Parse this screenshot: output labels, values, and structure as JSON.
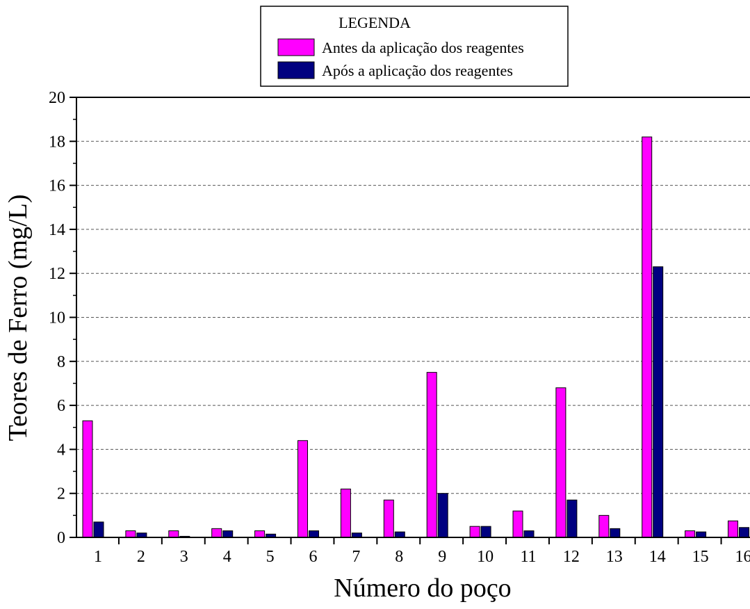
{
  "legend": {
    "title": "LEGENDA",
    "entries": [
      "Antes da aplicação dos reagentes",
      "Após a aplicação dos reagentes"
    ]
  },
  "colors": {
    "before": "#FF00FF",
    "after": "#000080",
    "grid": "#555555"
  },
  "chart_data": {
    "type": "bar",
    "xlabel": "Número do poço",
    "ylabel": "Teores de Ferro (mg/L)",
    "ylim": [
      0,
      20
    ],
    "yticks": [
      0,
      2,
      4,
      6,
      8,
      10,
      12,
      14,
      16,
      18,
      20
    ],
    "grid": true,
    "legend_position": "top-center",
    "categories": [
      "1",
      "2",
      "3",
      "4",
      "5",
      "6",
      "7",
      "8",
      "9",
      "10",
      "11",
      "12",
      "13",
      "14",
      "15",
      "16"
    ],
    "series": [
      {
        "name": "Antes da aplicação dos reagentes",
        "values": [
          5.3,
          0.3,
          0.3,
          0.4,
          0.3,
          4.4,
          2.2,
          1.7,
          7.5,
          0.5,
          1.2,
          6.8,
          1.0,
          18.2,
          0.3,
          0.75
        ]
      },
      {
        "name": "Após a aplicação dos reagentes",
        "values": [
          0.7,
          0.2,
          0.05,
          0.3,
          0.15,
          0.3,
          0.2,
          0.25,
          2.0,
          0.5,
          0.3,
          1.7,
          0.4,
          12.3,
          0.25,
          0.45
        ]
      }
    ]
  }
}
